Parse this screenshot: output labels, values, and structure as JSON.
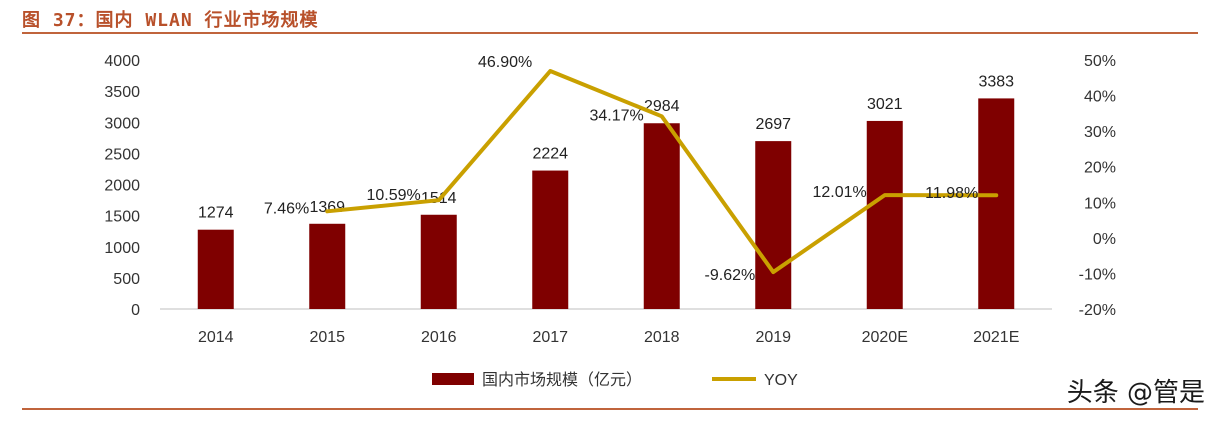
{
  "header": {
    "figure_title": "图 37：国内 WLAN 行业市场规模"
  },
  "watermark": "头条 @管是",
  "chart_data": {
    "type": "bar",
    "categories": [
      "2014",
      "2015",
      "2016",
      "2017",
      "2018",
      "2019",
      "2020E",
      "2021E"
    ],
    "series": [
      {
        "name": "国内市场规模（亿元）",
        "type": "bar",
        "axis": "left",
        "values": [
          1274,
          1369,
          1514,
          2224,
          2984,
          2697,
          3021,
          3383
        ],
        "labels": [
          "1274",
          "1369",
          "1514",
          "2224",
          "2984",
          "2697",
          "3021",
          "3383"
        ],
        "color": "#7f0000"
      },
      {
        "name": "YOY",
        "type": "line",
        "axis": "right",
        "x": [
          "2015",
          "2016",
          "2017",
          "2018",
          "2019",
          "2020E",
          "2021E"
        ],
        "values": [
          7.46,
          10.59,
          46.9,
          34.17,
          -9.62,
          12.01,
          11.98
        ],
        "labels": [
          "7.46%",
          "10.59%",
          "46.90%",
          "34.17%",
          "-9.62%",
          "12.01%",
          "11.98%"
        ],
        "color": "#c9a000"
      }
    ],
    "ylim": [
      0,
      4000
    ],
    "yticks": [
      "0",
      "500",
      "1000",
      "1500",
      "2000",
      "2500",
      "3000",
      "3500",
      "4000"
    ],
    "y2lim": [
      -20,
      50
    ],
    "y2ticks": [
      "-20%",
      "-10%",
      "0%",
      "10%",
      "20%",
      "30%",
      "40%",
      "50%"
    ],
    "legend_position": "bottom",
    "grid": false
  }
}
